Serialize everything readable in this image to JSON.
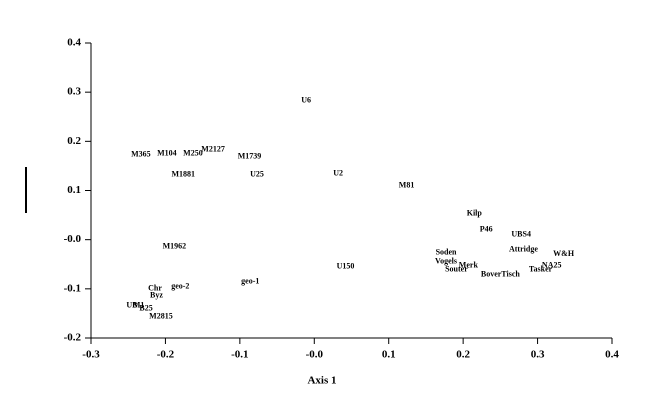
{
  "chart_data": {
    "type": "scatter",
    "x_label": "Axis 1",
    "xlim": [
      -0.3,
      0.4
    ],
    "xticks": [
      -0.3,
      -0.2,
      -0.1,
      {
        "value": 0,
        "label": "-0.0"
      },
      0.1,
      0.2,
      0.3,
      0.4
    ],
    "ylim": [
      -0.2,
      0.4
    ],
    "yticks": [
      -0.2,
      -0.1,
      {
        "value": 0,
        "label": "-0.0"
      },
      0.1,
      0.2,
      0.3,
      0.4
    ],
    "labels": [
      "U6",
      "M365",
      "M104",
      "M250",
      "M2127",
      "M1739",
      "M1881",
      "U25",
      "U2",
      "M81",
      "Kilp",
      "P46",
      "UBS4",
      "Attridge",
      "W&H",
      "NA25",
      "Tasker",
      "Soden",
      "Vogels",
      "Merk",
      "Souter",
      "BoverTisch",
      "U150",
      "M1962",
      "geo-1",
      "geo-2",
      "Chr",
      "Byz",
      "UB",
      "M1",
      "B25",
      "M2815"
    ],
    "x": [
      -0.011,
      -0.233,
      -0.198,
      -0.163,
      -0.136,
      -0.087,
      -0.176,
      -0.077,
      0.032,
      0.124,
      0.215,
      0.231,
      0.278,
      0.281,
      0.335,
      0.319,
      0.304,
      0.177,
      0.177,
      0.207,
      0.191,
      0.25,
      0.042,
      -0.188,
      -0.086,
      -0.18,
      -0.214,
      -0.212,
      -0.245,
      -0.236,
      -0.226,
      -0.206
    ],
    "values": [
      0.283,
      0.173,
      0.175,
      0.175,
      0.183,
      0.169,
      0.132,
      0.132,
      0.134,
      0.11,
      0.053,
      0.02,
      0.01,
      -0.02,
      -0.03,
      -0.053,
      -0.061,
      -0.026,
      -0.045,
      -0.053,
      -0.061,
      -0.071,
      -0.055,
      -0.014,
      -0.085,
      -0.096,
      -0.1,
      -0.114,
      -0.134,
      -0.134,
      -0.14,
      -0.157
    ]
  }
}
